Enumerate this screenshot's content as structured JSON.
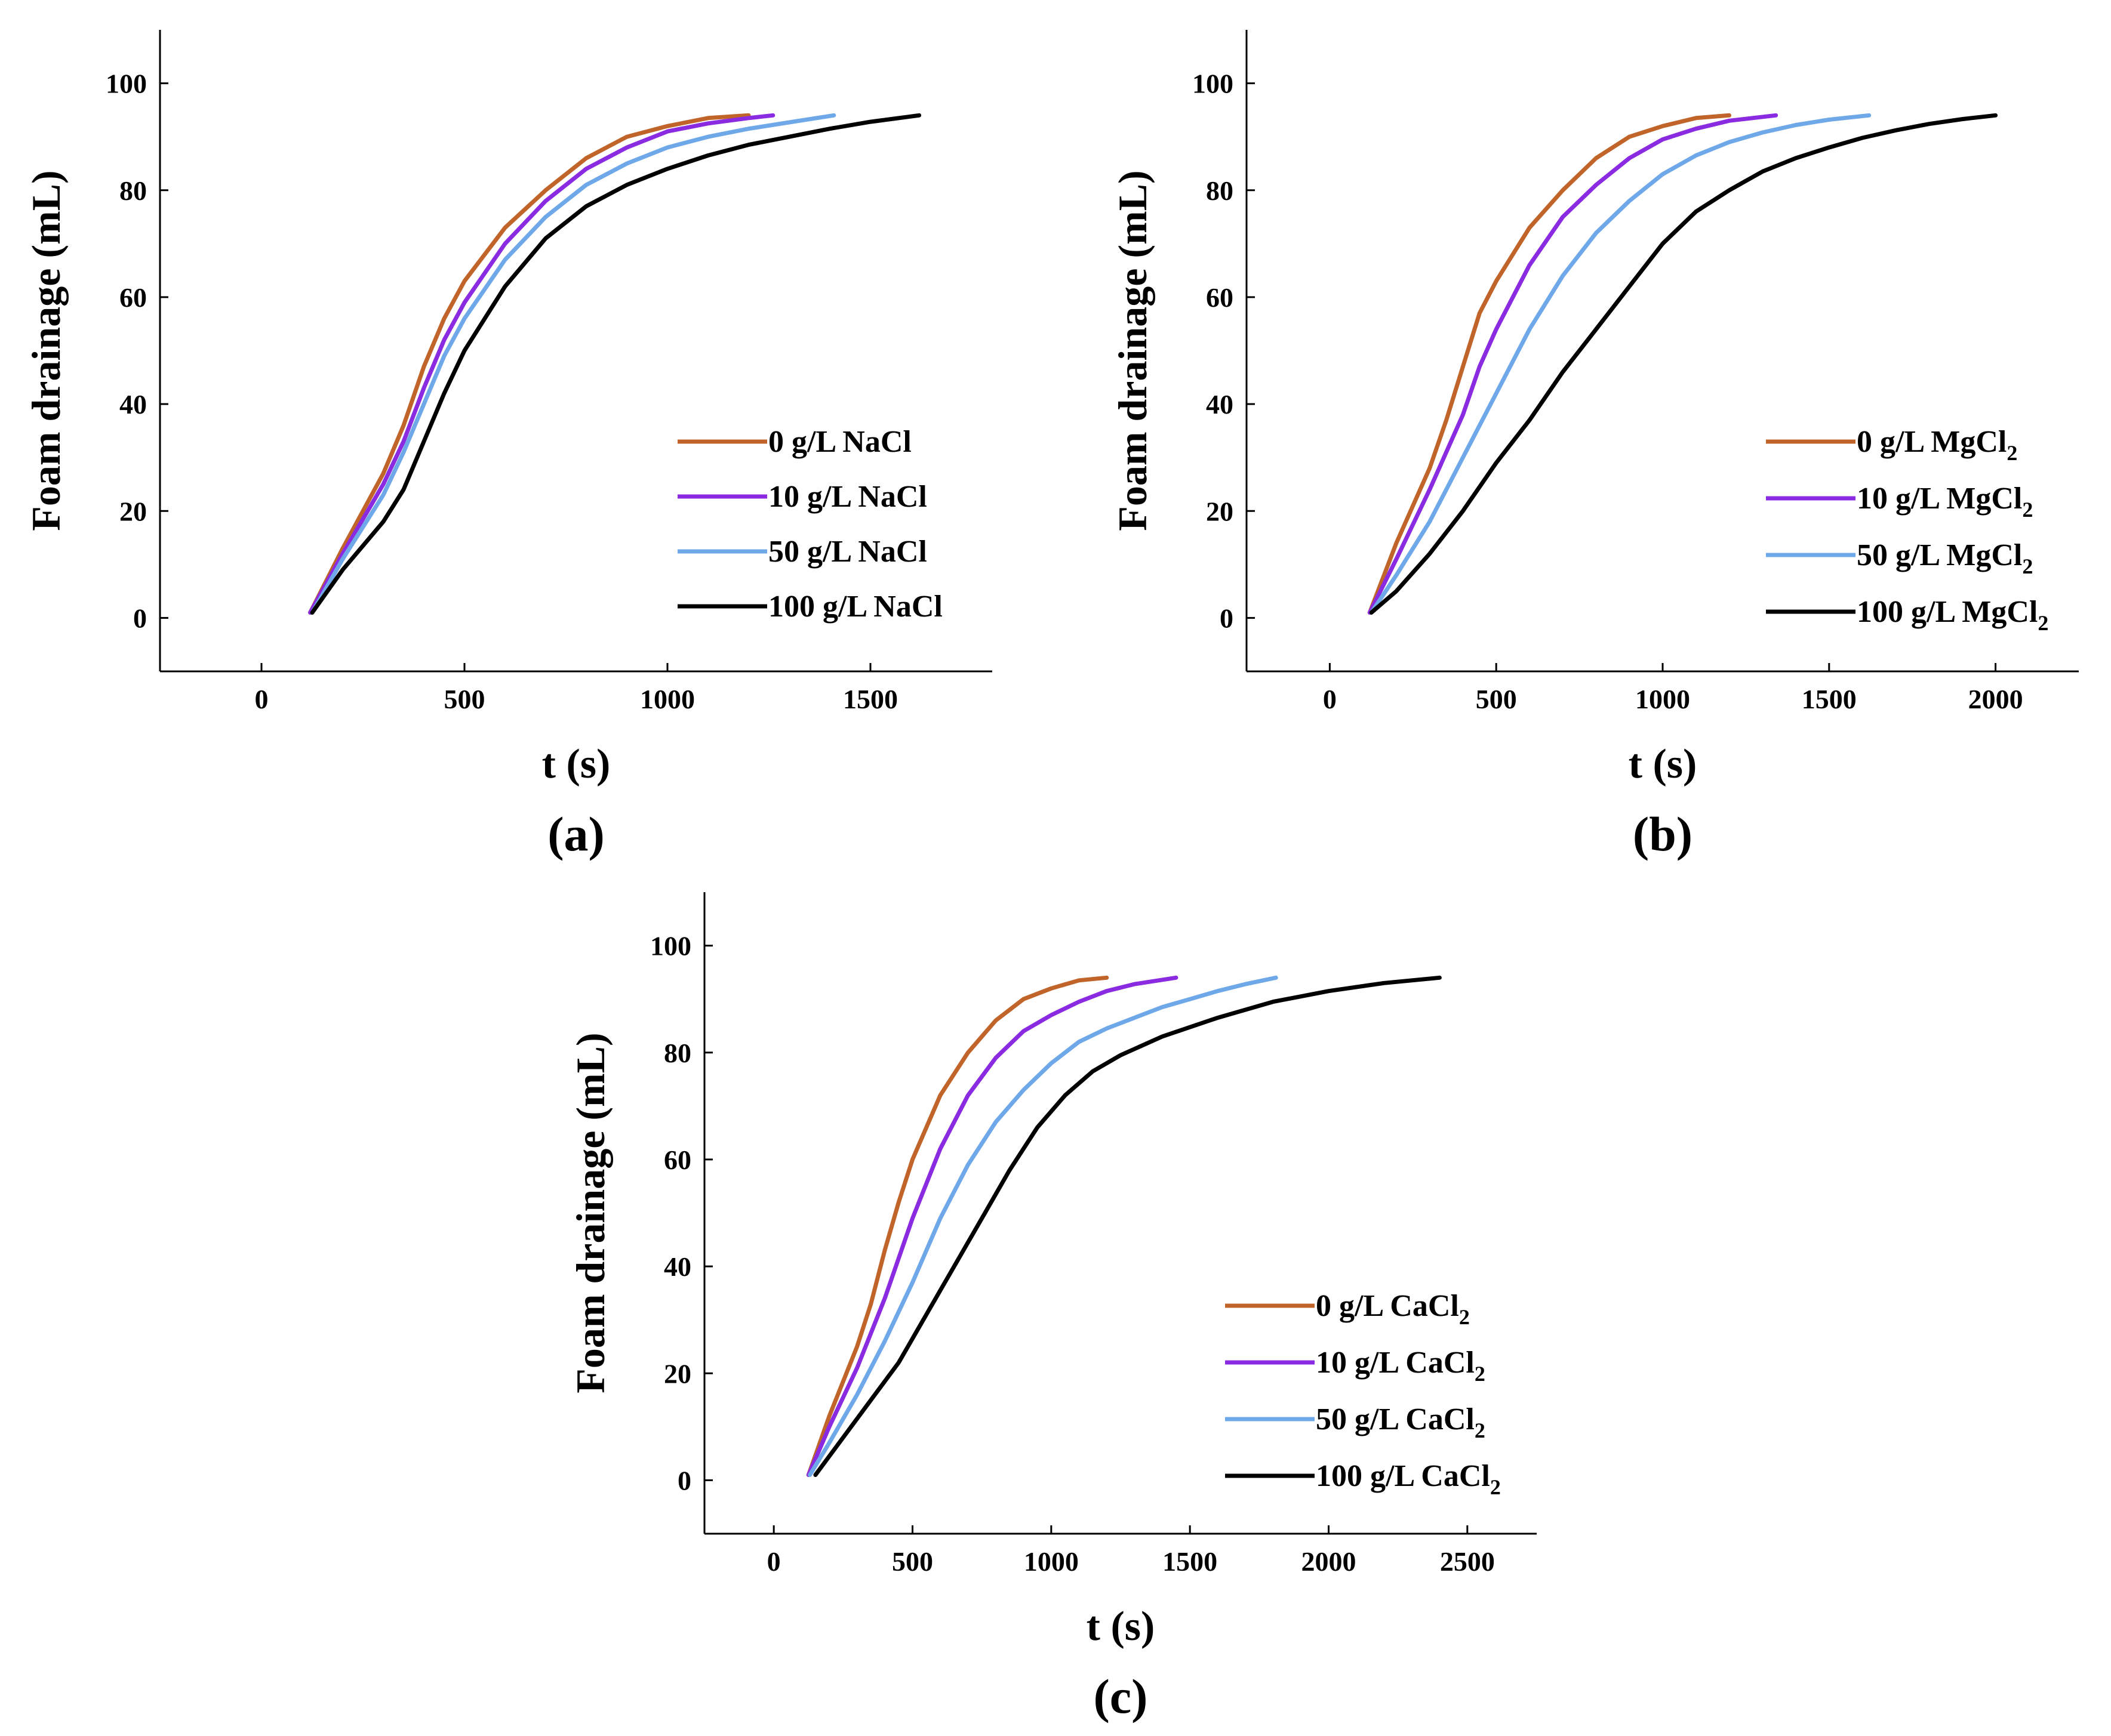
{
  "figure": {
    "panels": [
      "(a)",
      "(b)",
      "(c)"
    ]
  },
  "chart_data": [
    {
      "id": "a",
      "type": "line",
      "panel_label": "(a)",
      "xlabel": "t (s)",
      "ylabel": "Foam drainage (mL)",
      "xlim": [
        -250,
        1800
      ],
      "ylim": [
        -10,
        110
      ],
      "xticks": [
        0,
        500,
        1000,
        1500
      ],
      "yticks": [
        0,
        20,
        40,
        60,
        80,
        100
      ],
      "grid": false,
      "legend_position": "lower-right",
      "series": [
        {
          "name": "0 g/L NaCl",
          "base": "0 g/L NaCl",
          "sub": "",
          "color": "#c0642a",
          "x": [
            120,
            200,
            300,
            350,
            400,
            450,
            500,
            600,
            700,
            800,
            900,
            1000,
            1100,
            1200
          ],
          "y": [
            1,
            13,
            27,
            36,
            47,
            56,
            63,
            73,
            80,
            86,
            90,
            92,
            93.5,
            94
          ]
        },
        {
          "name": "10 g/L NaCl",
          "base": "10 g/L NaCl",
          "sub": "",
          "color": "#8a2be2",
          "x": [
            120,
            200,
            300,
            350,
            400,
            450,
            500,
            600,
            700,
            800,
            900,
            1000,
            1100,
            1200,
            1260
          ],
          "y": [
            1,
            12,
            25,
            33,
            43,
            52,
            59,
            70,
            78,
            84,
            88,
            91,
            92.5,
            93.5,
            94
          ]
        },
        {
          "name": "50 g/L NaCl",
          "base": "50 g/L NaCl",
          "sub": "",
          "color": "#6fa8e8",
          "x": [
            125,
            200,
            300,
            350,
            400,
            450,
            500,
            600,
            700,
            800,
            900,
            1000,
            1100,
            1200,
            1300,
            1410
          ],
          "y": [
            1,
            11,
            23,
            31,
            40,
            49,
            56,
            67,
            75,
            81,
            85,
            88,
            90,
            91.5,
            92.7,
            94
          ]
        },
        {
          "name": "100 g/L NaCl",
          "base": "100 g/L NaCl",
          "sub": "",
          "color": "#000000",
          "x": [
            125,
            200,
            300,
            350,
            400,
            450,
            500,
            600,
            700,
            800,
            900,
            1000,
            1100,
            1200,
            1300,
            1400,
            1500,
            1620
          ],
          "y": [
            1,
            9,
            18,
            24,
            33,
            42,
            50,
            62,
            71,
            77,
            81,
            84,
            86.5,
            88.5,
            90,
            91.5,
            92.8,
            94
          ]
        }
      ]
    },
    {
      "id": "b",
      "type": "line",
      "panel_label": "(b)",
      "xlabel": "t (s)",
      "ylabel": "Foam drainage (mL)",
      "xlim": [
        -250,
        2250
      ],
      "ylim": [
        -10,
        110
      ],
      "xticks": [
        0,
        500,
        1000,
        1500,
        2000
      ],
      "yticks": [
        0,
        20,
        40,
        60,
        80,
        100
      ],
      "grid": false,
      "legend_position": "lower-right",
      "series": [
        {
          "name": "0 g/L MgCl2",
          "base": "0 g/L MgCl",
          "sub": "2",
          "color": "#c0642a",
          "x": [
            120,
            200,
            300,
            350,
            400,
            450,
            500,
            600,
            700,
            800,
            900,
            1000,
            1100,
            1200
          ],
          "y": [
            1,
            14,
            28,
            37,
            47,
            57,
            63,
            73,
            80,
            86,
            90,
            92,
            93.5,
            94
          ]
        },
        {
          "name": "10 g/L MgCl2",
          "base": "10 g/L MgCl",
          "sub": "2",
          "color": "#8a2be2",
          "x": [
            120,
            200,
            300,
            400,
            450,
            500,
            600,
            700,
            800,
            900,
            1000,
            1100,
            1200,
            1340
          ],
          "y": [
            1,
            11,
            24,
            38,
            47,
            54,
            66,
            75,
            81,
            86,
            89.5,
            91.5,
            93,
            94
          ]
        },
        {
          "name": "50 g/L MgCl2",
          "base": "50 g/L MgCl",
          "sub": "2",
          "color": "#6fa8e8",
          "x": [
            125,
            200,
            300,
            400,
            500,
            600,
            700,
            800,
            900,
            1000,
            1100,
            1200,
            1300,
            1400,
            1500,
            1620
          ],
          "y": [
            1,
            8,
            18,
            30,
            42,
            54,
            64,
            72,
            78,
            83,
            86.5,
            89,
            90.8,
            92.2,
            93.2,
            94
          ]
        },
        {
          "name": "100 g/L MgCl2",
          "base": "100 g/L MgCl",
          "sub": "2",
          "color": "#000000",
          "x": [
            125,
            200,
            300,
            400,
            500,
            600,
            700,
            800,
            900,
            1000,
            1100,
            1200,
            1300,
            1400,
            1500,
            1600,
            1700,
            1800,
            1900,
            2000
          ],
          "y": [
            1,
            5,
            12,
            20,
            29,
            37,
            46,
            54,
            62,
            70,
            76,
            80,
            83.5,
            86,
            88,
            89.8,
            91.2,
            92.4,
            93.3,
            94
          ]
        }
      ]
    },
    {
      "id": "c",
      "type": "line",
      "panel_label": "(c)",
      "xlabel": "t (s)",
      "ylabel": "Foam drainage (mL)",
      "xlim": [
        -250,
        2750
      ],
      "ylim": [
        -10,
        110
      ],
      "xticks": [
        0,
        500,
        1000,
        1500,
        2000,
        2500
      ],
      "yticks": [
        0,
        20,
        40,
        60,
        80,
        100
      ],
      "grid": false,
      "legend_position": "lower-right",
      "series": [
        {
          "name": "0 g/L CaCl2",
          "base": "0 g/L CaCl",
          "sub": "2",
          "color": "#c0642a",
          "x": [
            125,
            200,
            300,
            350,
            400,
            450,
            500,
            600,
            700,
            800,
            900,
            1000,
            1100,
            1200
          ],
          "y": [
            1,
            12,
            25,
            33,
            43,
            52,
            60,
            72,
            80,
            86,
            90,
            92,
            93.5,
            94
          ]
        },
        {
          "name": "10 g/L CaCl2",
          "base": "10 g/L CaCl",
          "sub": "2",
          "color": "#8a2be2",
          "x": [
            125,
            200,
            300,
            400,
            500,
            600,
            700,
            800,
            900,
            1000,
            1100,
            1200,
            1300,
            1450
          ],
          "y": [
            1,
            10,
            21,
            34,
            49,
            62,
            72,
            79,
            84,
            87,
            89.5,
            91.5,
            92.8,
            94
          ]
        },
        {
          "name": "50 g/L CaCl2",
          "base": "50 g/L CaCl",
          "sub": "2",
          "color": "#6fa8e8",
          "x": [
            130,
            200,
            300,
            400,
            500,
            600,
            700,
            800,
            900,
            1000,
            1100,
            1200,
            1300,
            1400,
            1500,
            1600,
            1700,
            1810
          ],
          "y": [
            1,
            7,
            16,
            26,
            37,
            49,
            59,
            67,
            73,
            78,
            82,
            84.5,
            86.5,
            88.5,
            90,
            91.5,
            92.8,
            94
          ]
        },
        {
          "name": "100 g/L CaCl2",
          "base": "100 g/L CaCl",
          "sub": "2",
          "color": "#000000",
          "x": [
            150,
            250,
            350,
            450,
            550,
            650,
            750,
            850,
            950,
            1050,
            1150,
            1250,
            1400,
            1600,
            1800,
            2000,
            2200,
            2400
          ],
          "y": [
            1,
            8,
            15,
            22,
            31,
            40,
            49,
            58,
            66,
            72,
            76.5,
            79.5,
            83,
            86.5,
            89.5,
            91.5,
            93,
            94
          ]
        }
      ]
    }
  ]
}
